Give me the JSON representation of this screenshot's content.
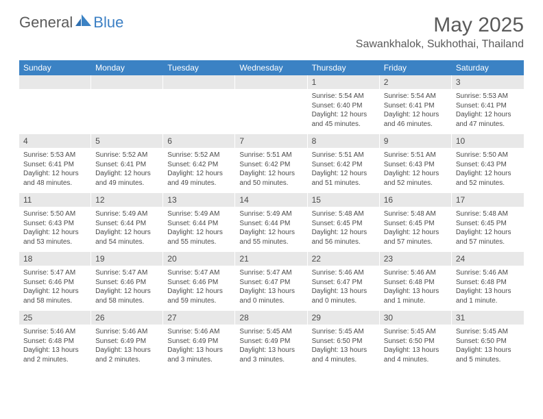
{
  "logo": {
    "general": "General",
    "blue": "Blue"
  },
  "title": "May 2025",
  "location": "Sawankhalok, Sukhothai, Thailand",
  "colors": {
    "header_bg": "#3b82c4",
    "header_text": "#ffffff",
    "daynum_bg": "#e8e8e8",
    "text": "#4a4a4a",
    "logo_gray": "#5a5a5a",
    "logo_blue": "#3b7fc4"
  },
  "weekdays": [
    "Sunday",
    "Monday",
    "Tuesday",
    "Wednesday",
    "Thursday",
    "Friday",
    "Saturday"
  ],
  "weeks": [
    [
      null,
      null,
      null,
      null,
      {
        "n": "1",
        "sr": "Sunrise: 5:54 AM",
        "ss": "Sunset: 6:40 PM",
        "dl": "Daylight: 12 hours and 45 minutes."
      },
      {
        "n": "2",
        "sr": "Sunrise: 5:54 AM",
        "ss": "Sunset: 6:41 PM",
        "dl": "Daylight: 12 hours and 46 minutes."
      },
      {
        "n": "3",
        "sr": "Sunrise: 5:53 AM",
        "ss": "Sunset: 6:41 PM",
        "dl": "Daylight: 12 hours and 47 minutes."
      }
    ],
    [
      {
        "n": "4",
        "sr": "Sunrise: 5:53 AM",
        "ss": "Sunset: 6:41 PM",
        "dl": "Daylight: 12 hours and 48 minutes."
      },
      {
        "n": "5",
        "sr": "Sunrise: 5:52 AM",
        "ss": "Sunset: 6:41 PM",
        "dl": "Daylight: 12 hours and 49 minutes."
      },
      {
        "n": "6",
        "sr": "Sunrise: 5:52 AM",
        "ss": "Sunset: 6:42 PM",
        "dl": "Daylight: 12 hours and 49 minutes."
      },
      {
        "n": "7",
        "sr": "Sunrise: 5:51 AM",
        "ss": "Sunset: 6:42 PM",
        "dl": "Daylight: 12 hours and 50 minutes."
      },
      {
        "n": "8",
        "sr": "Sunrise: 5:51 AM",
        "ss": "Sunset: 6:42 PM",
        "dl": "Daylight: 12 hours and 51 minutes."
      },
      {
        "n": "9",
        "sr": "Sunrise: 5:51 AM",
        "ss": "Sunset: 6:43 PM",
        "dl": "Daylight: 12 hours and 52 minutes."
      },
      {
        "n": "10",
        "sr": "Sunrise: 5:50 AM",
        "ss": "Sunset: 6:43 PM",
        "dl": "Daylight: 12 hours and 52 minutes."
      }
    ],
    [
      {
        "n": "11",
        "sr": "Sunrise: 5:50 AM",
        "ss": "Sunset: 6:43 PM",
        "dl": "Daylight: 12 hours and 53 minutes."
      },
      {
        "n": "12",
        "sr": "Sunrise: 5:49 AM",
        "ss": "Sunset: 6:44 PM",
        "dl": "Daylight: 12 hours and 54 minutes."
      },
      {
        "n": "13",
        "sr": "Sunrise: 5:49 AM",
        "ss": "Sunset: 6:44 PM",
        "dl": "Daylight: 12 hours and 55 minutes."
      },
      {
        "n": "14",
        "sr": "Sunrise: 5:49 AM",
        "ss": "Sunset: 6:44 PM",
        "dl": "Daylight: 12 hours and 55 minutes."
      },
      {
        "n": "15",
        "sr": "Sunrise: 5:48 AM",
        "ss": "Sunset: 6:45 PM",
        "dl": "Daylight: 12 hours and 56 minutes."
      },
      {
        "n": "16",
        "sr": "Sunrise: 5:48 AM",
        "ss": "Sunset: 6:45 PM",
        "dl": "Daylight: 12 hours and 57 minutes."
      },
      {
        "n": "17",
        "sr": "Sunrise: 5:48 AM",
        "ss": "Sunset: 6:45 PM",
        "dl": "Daylight: 12 hours and 57 minutes."
      }
    ],
    [
      {
        "n": "18",
        "sr": "Sunrise: 5:47 AM",
        "ss": "Sunset: 6:46 PM",
        "dl": "Daylight: 12 hours and 58 minutes."
      },
      {
        "n": "19",
        "sr": "Sunrise: 5:47 AM",
        "ss": "Sunset: 6:46 PM",
        "dl": "Daylight: 12 hours and 58 minutes."
      },
      {
        "n": "20",
        "sr": "Sunrise: 5:47 AM",
        "ss": "Sunset: 6:46 PM",
        "dl": "Daylight: 12 hours and 59 minutes."
      },
      {
        "n": "21",
        "sr": "Sunrise: 5:47 AM",
        "ss": "Sunset: 6:47 PM",
        "dl": "Daylight: 13 hours and 0 minutes."
      },
      {
        "n": "22",
        "sr": "Sunrise: 5:46 AM",
        "ss": "Sunset: 6:47 PM",
        "dl": "Daylight: 13 hours and 0 minutes."
      },
      {
        "n": "23",
        "sr": "Sunrise: 5:46 AM",
        "ss": "Sunset: 6:48 PM",
        "dl": "Daylight: 13 hours and 1 minute."
      },
      {
        "n": "24",
        "sr": "Sunrise: 5:46 AM",
        "ss": "Sunset: 6:48 PM",
        "dl": "Daylight: 13 hours and 1 minute."
      }
    ],
    [
      {
        "n": "25",
        "sr": "Sunrise: 5:46 AM",
        "ss": "Sunset: 6:48 PM",
        "dl": "Daylight: 13 hours and 2 minutes."
      },
      {
        "n": "26",
        "sr": "Sunrise: 5:46 AM",
        "ss": "Sunset: 6:49 PM",
        "dl": "Daylight: 13 hours and 2 minutes."
      },
      {
        "n": "27",
        "sr": "Sunrise: 5:46 AM",
        "ss": "Sunset: 6:49 PM",
        "dl": "Daylight: 13 hours and 3 minutes."
      },
      {
        "n": "28",
        "sr": "Sunrise: 5:45 AM",
        "ss": "Sunset: 6:49 PM",
        "dl": "Daylight: 13 hours and 3 minutes."
      },
      {
        "n": "29",
        "sr": "Sunrise: 5:45 AM",
        "ss": "Sunset: 6:50 PM",
        "dl": "Daylight: 13 hours and 4 minutes."
      },
      {
        "n": "30",
        "sr": "Sunrise: 5:45 AM",
        "ss": "Sunset: 6:50 PM",
        "dl": "Daylight: 13 hours and 4 minutes."
      },
      {
        "n": "31",
        "sr": "Sunrise: 5:45 AM",
        "ss": "Sunset: 6:50 PM",
        "dl": "Daylight: 13 hours and 5 minutes."
      }
    ]
  ]
}
